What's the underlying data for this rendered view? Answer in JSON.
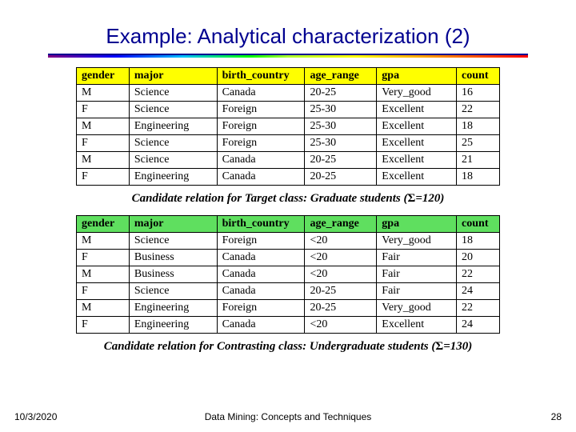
{
  "slide": {
    "title": "Example: Analytical characterization (2)",
    "caption1_pre": "Candidate relation for Target class: Graduate students (",
    "caption1_post": "=120)",
    "caption2_pre": "Candidate relation for Contrasting class: Undergraduate students (",
    "caption2_post": "=130)",
    "sigma": "Σ"
  },
  "table1": {
    "header_bg": "#ffff00",
    "columns": [
      "gender",
      "major",
      "birth_country",
      "age_range",
      "gpa",
      "count"
    ],
    "rows": [
      [
        "M",
        "Science",
        "Canada",
        "20-25",
        "Very_good",
        "16"
      ],
      [
        "F",
        "Science",
        "Foreign",
        "25-30",
        "Excellent",
        "22"
      ],
      [
        "M",
        "Engineering",
        "Foreign",
        "25-30",
        "Excellent",
        "18"
      ],
      [
        "F",
        "Science",
        "Foreign",
        "25-30",
        "Excellent",
        "25"
      ],
      [
        "M",
        "Science",
        "Canada",
        "20-25",
        "Excellent",
        "21"
      ],
      [
        "F",
        "Engineering",
        "Canada",
        "20-25",
        "Excellent",
        "18"
      ]
    ]
  },
  "table2": {
    "header_bg": "#5fdf5f",
    "columns": [
      "gender",
      "major",
      "birth_country",
      "age_range",
      "gpa",
      "count"
    ],
    "rows": [
      [
        "M",
        "Science",
        "Foreign",
        "<20",
        "Very_good",
        "18"
      ],
      [
        "F",
        "Business",
        "Canada",
        "<20",
        "Fair",
        "20"
      ],
      [
        "M",
        "Business",
        "Canada",
        "<20",
        "Fair",
        "22"
      ],
      [
        "F",
        "Science",
        "Canada",
        "20-25",
        "Fair",
        "24"
      ],
      [
        "M",
        "Engineering",
        "Foreign",
        "20-25",
        "Very_good",
        "22"
      ],
      [
        "F",
        "Engineering",
        "Canada",
        "<20",
        "Excellent",
        "24"
      ]
    ]
  },
  "footer": {
    "date": "10/3/2020",
    "mid": "Data Mining: Concepts and Techniques",
    "num": "28"
  }
}
